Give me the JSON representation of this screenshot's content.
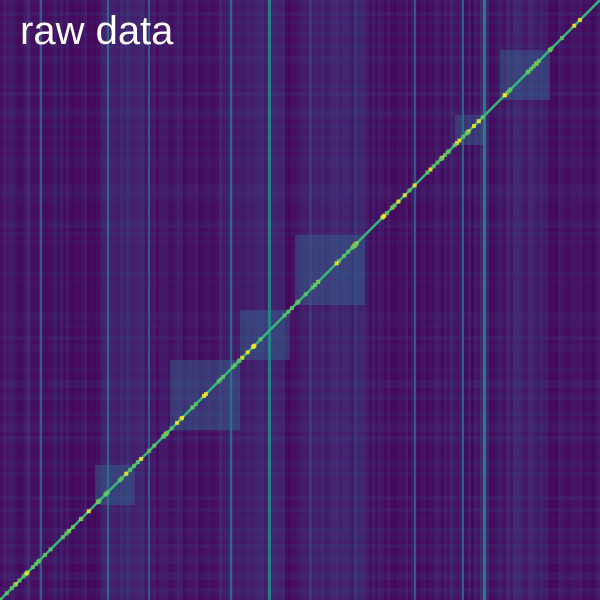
{
  "title": "raw data"
}
